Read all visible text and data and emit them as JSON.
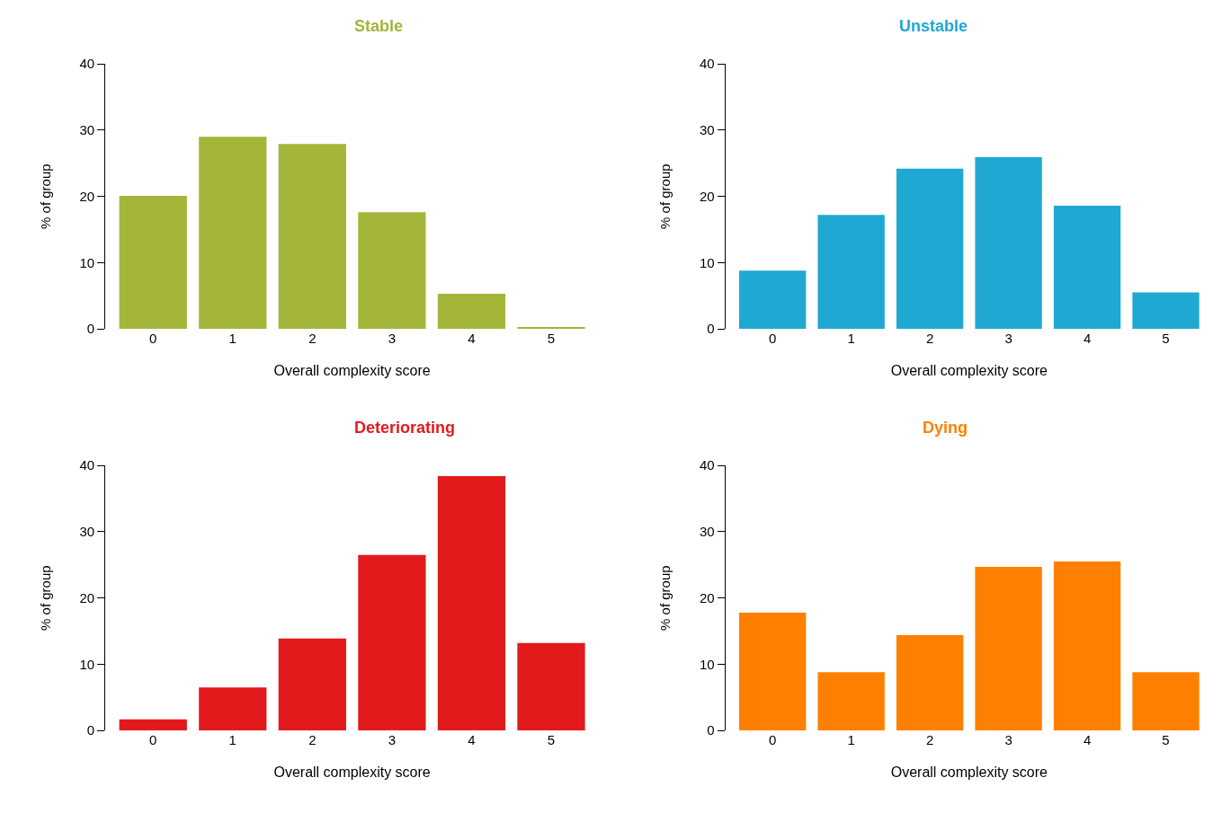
{
  "chart_data": [
    {
      "type": "bar",
      "title": "Stable",
      "xlabel": "Overall complexity score",
      "ylabel": "% of group",
      "categories": [
        "0",
        "1",
        "2",
        "3",
        "4",
        "5"
      ],
      "values": [
        20.1,
        29.0,
        27.9,
        17.6,
        5.3,
        0.3
      ],
      "color": "#a4b53a",
      "ylim": [
        0,
        40
      ],
      "yticks": [
        0,
        10,
        20,
        30,
        40
      ]
    },
    {
      "type": "bar",
      "title": "Unstable",
      "xlabel": "Overall complexity score",
      "ylabel": "% of group",
      "categories": [
        "0",
        "1",
        "2",
        "3",
        "4",
        "5"
      ],
      "values": [
        8.8,
        17.2,
        24.2,
        25.9,
        18.6,
        5.5
      ],
      "color": "#1fa8d2",
      "ylim": [
        0,
        40
      ],
      "yticks": [
        0,
        10,
        20,
        30,
        40
      ]
    },
    {
      "type": "bar",
      "title": "Deteriorating",
      "xlabel": "Overall complexity score",
      "ylabel": "% of group",
      "categories": [
        "0",
        "1",
        "2",
        "3",
        "4",
        "5"
      ],
      "values": [
        1.7,
        6.5,
        13.9,
        26.5,
        38.4,
        13.2
      ],
      "color": "#e31a1c",
      "ylim": [
        0,
        40
      ],
      "yticks": [
        0,
        10,
        20,
        30,
        40
      ]
    },
    {
      "type": "bar",
      "title": "Dying",
      "xlabel": "Overall complexity score",
      "ylabel": "% of group",
      "categories": [
        "0",
        "1",
        "2",
        "3",
        "4",
        "5"
      ],
      "values": [
        17.8,
        8.8,
        14.4,
        24.7,
        25.5,
        8.8
      ],
      "color": "#ff7f00",
      "ylim": [
        0,
        40
      ],
      "yticks": [
        0,
        10,
        20,
        30,
        40
      ]
    }
  ]
}
